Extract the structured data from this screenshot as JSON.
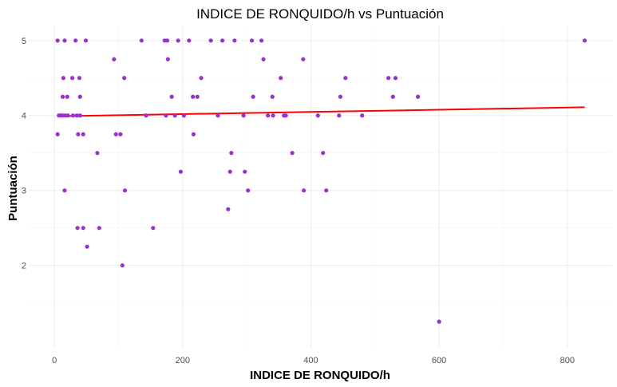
{
  "chart_data": {
    "type": "scatter",
    "title": "INDICE DE RONQUIDO/h vs Puntuación",
    "xlabel": "INDICE DE RONQUIDO/h",
    "ylabel": "Puntuación",
    "xlim": [
      -40,
      870
    ],
    "ylim": [
      0.9,
      5.2
    ],
    "x_ticks": [
      0,
      200,
      400,
      600,
      800
    ],
    "y_ticks": [
      2,
      3,
      4,
      5
    ],
    "grid": true,
    "colors": {
      "points": "#9932CC",
      "trend": "#FF0000"
    },
    "trend_line": {
      "x": [
        5,
        827
      ],
      "y": [
        3.99,
        4.11
      ]
    },
    "points": [
      {
        "x": 5,
        "y": 5
      },
      {
        "x": 16,
        "y": 5
      },
      {
        "x": 33,
        "y": 5
      },
      {
        "x": 49,
        "y": 5
      },
      {
        "x": 136,
        "y": 5
      },
      {
        "x": 172,
        "y": 5
      },
      {
        "x": 176,
        "y": 5
      },
      {
        "x": 193,
        "y": 5
      },
      {
        "x": 210,
        "y": 5
      },
      {
        "x": 244,
        "y": 5
      },
      {
        "x": 262,
        "y": 5
      },
      {
        "x": 281,
        "y": 5
      },
      {
        "x": 308,
        "y": 5
      },
      {
        "x": 323,
        "y": 5
      },
      {
        "x": 827,
        "y": 5
      },
      {
        "x": 93,
        "y": 4.75
      },
      {
        "x": 177,
        "y": 4.75
      },
      {
        "x": 326,
        "y": 4.75
      },
      {
        "x": 388,
        "y": 4.75
      },
      {
        "x": 14,
        "y": 4.5
      },
      {
        "x": 28,
        "y": 4.5
      },
      {
        "x": 39,
        "y": 4.5
      },
      {
        "x": 109,
        "y": 4.5
      },
      {
        "x": 229,
        "y": 4.5
      },
      {
        "x": 353,
        "y": 4.5
      },
      {
        "x": 454,
        "y": 4.5
      },
      {
        "x": 521,
        "y": 4.5
      },
      {
        "x": 532,
        "y": 4.5
      },
      {
        "x": 13,
        "y": 4.25
      },
      {
        "x": 20,
        "y": 4.25
      },
      {
        "x": 40,
        "y": 4.25
      },
      {
        "x": 183,
        "y": 4.25
      },
      {
        "x": 216,
        "y": 4.25
      },
      {
        "x": 223,
        "y": 4.25
      },
      {
        "x": 310,
        "y": 4.25
      },
      {
        "x": 340,
        "y": 4.25
      },
      {
        "x": 446,
        "y": 4.25
      },
      {
        "x": 528,
        "y": 4.25
      },
      {
        "x": 567,
        "y": 4.25
      },
      {
        "x": 7,
        "y": 4
      },
      {
        "x": 10,
        "y": 4
      },
      {
        "x": 13,
        "y": 4
      },
      {
        "x": 17,
        "y": 4
      },
      {
        "x": 21,
        "y": 4
      },
      {
        "x": 29,
        "y": 4
      },
      {
        "x": 35,
        "y": 4
      },
      {
        "x": 40,
        "y": 4
      },
      {
        "x": 143,
        "y": 4
      },
      {
        "x": 174,
        "y": 4
      },
      {
        "x": 188,
        "y": 4
      },
      {
        "x": 202,
        "y": 4
      },
      {
        "x": 255,
        "y": 4
      },
      {
        "x": 295,
        "y": 4
      },
      {
        "x": 333,
        "y": 4
      },
      {
        "x": 341,
        "y": 4
      },
      {
        "x": 358,
        "y": 4
      },
      {
        "x": 361,
        "y": 4
      },
      {
        "x": 411,
        "y": 4
      },
      {
        "x": 444,
        "y": 4
      },
      {
        "x": 480,
        "y": 4
      },
      {
        "x": 5,
        "y": 3.75
      },
      {
        "x": 37,
        "y": 3.75
      },
      {
        "x": 45,
        "y": 3.75
      },
      {
        "x": 96,
        "y": 3.75
      },
      {
        "x": 103,
        "y": 3.75
      },
      {
        "x": 217,
        "y": 3.75
      },
      {
        "x": 67,
        "y": 3.5
      },
      {
        "x": 276,
        "y": 3.5
      },
      {
        "x": 371,
        "y": 3.5
      },
      {
        "x": 419,
        "y": 3.5
      },
      {
        "x": 197,
        "y": 3.25
      },
      {
        "x": 274,
        "y": 3.25
      },
      {
        "x": 297,
        "y": 3.25
      },
      {
        "x": 16,
        "y": 3
      },
      {
        "x": 110,
        "y": 3
      },
      {
        "x": 302,
        "y": 3
      },
      {
        "x": 389,
        "y": 3
      },
      {
        "x": 424,
        "y": 3
      },
      {
        "x": 271,
        "y": 2.75
      },
      {
        "x": 36,
        "y": 2.5
      },
      {
        "x": 45,
        "y": 2.5
      },
      {
        "x": 70,
        "y": 2.5
      },
      {
        "x": 154,
        "y": 2.5
      },
      {
        "x": 51,
        "y": 2.25
      },
      {
        "x": 106,
        "y": 2
      },
      {
        "x": 600,
        "y": 1.25
      }
    ]
  }
}
